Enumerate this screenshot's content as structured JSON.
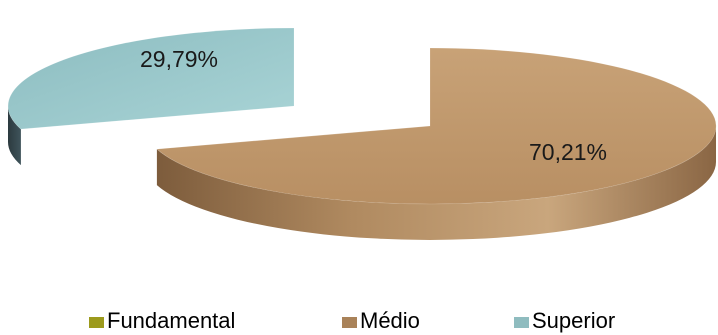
{
  "chart_data": {
    "type": "pie",
    "title": "",
    "categories": [
      "Fundamental",
      "Médio",
      "Superior"
    ],
    "values": [
      0,
      70.21,
      29.79
    ],
    "value_labels": [
      "",
      "70,21%",
      "29,79%"
    ],
    "unit": "%",
    "style": "3d-exploded",
    "legend_position": "bottom",
    "colors": {
      "Fundamental": "#9c9a1c",
      "Médio": "#c39c6e",
      "Superior": "#9cc9cb"
    },
    "side_colors": {
      "Médio": "#a9835a",
      "Superior": "#37494f"
    }
  },
  "legend": [
    {
      "label": "Fundamental",
      "color": "#9c9a1c"
    },
    {
      "label": "Médio",
      "color": "#a98259"
    },
    {
      "label": "Superior",
      "color": "#8fbcbf"
    }
  ]
}
